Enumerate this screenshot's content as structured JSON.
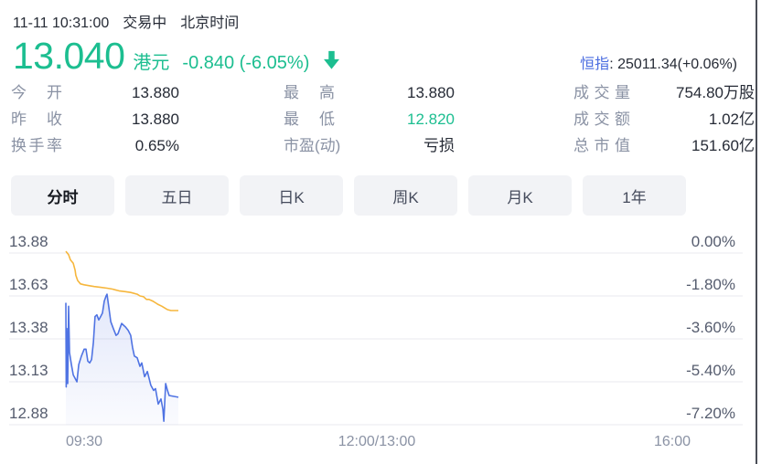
{
  "header": {
    "datetime": "11-11 10:31:00",
    "market_status": "交易中",
    "timezone": "北京时间",
    "price": "13.040",
    "currency": "港元",
    "change": "-0.840 (-6.05%)",
    "direction_icon": "down-arrow",
    "index_label": "恒指",
    "index_value": ": 25011.34(+0.06%)"
  },
  "stats": {
    "columns": [
      {
        "rows": [
          {
            "label": "今开",
            "value": "13.880"
          },
          {
            "label": "昨收",
            "value": "13.880"
          },
          {
            "label": "换手率",
            "value": "0.65%"
          }
        ]
      },
      {
        "rows": [
          {
            "label": "最高",
            "value": "13.880"
          },
          {
            "label": "最低",
            "value": "12.820"
          },
          {
            "label": "市盈(动)",
            "value": "亏损"
          }
        ]
      },
      {
        "rows": [
          {
            "label": "成交量",
            "value": "754.80万股"
          },
          {
            "label": "成交额",
            "value": "1.02亿"
          },
          {
            "label": "总市值",
            "value": "151.60亿"
          }
        ]
      }
    ]
  },
  "tabs": [
    {
      "label": "分时",
      "active": true
    },
    {
      "label": "五日",
      "active": false
    },
    {
      "label": "日K",
      "active": false
    },
    {
      "label": "周K",
      "active": false
    },
    {
      "label": "月K",
      "active": false
    },
    {
      "label": "1年",
      "active": false
    }
  ],
  "colors": {
    "accent_green": "#1CBE90",
    "index_blue": "#4A6CE0",
    "price_line_blue": "#4F73E3",
    "avg_line_orange": "#F6B63C",
    "text_dark": "#262B36",
    "label_gray": "#8A92A4",
    "axis_gray": "#555C6E",
    "grid_line": "#E9EAEF",
    "tab_bg": "#F2F3F6",
    "edge_line": "#4A4E57"
  },
  "chart_data": {
    "type": "line",
    "title": "分时图 (intraday price vs average)",
    "prev_close": 13.88,
    "x_ticks": [
      "09:30",
      "12:00/13:00",
      "16:00"
    ],
    "y_left_ticks": [
      "13.88",
      "13.63",
      "13.38",
      "13.13",
      "12.88"
    ],
    "y_right_ticks": [
      "0.00%",
      "-1.80%",
      "-3.60%",
      "-5.40%",
      "-7.20%"
    ],
    "y_axis_prices": [
      13.88,
      13.63,
      13.38,
      13.13,
      12.88
    ],
    "ylim": [
      12.82,
      13.88
    ],
    "x_range_minutes": [
      0,
      330
    ],
    "grid": true,
    "legend": "none",
    "series": [
      {
        "name": "price",
        "color": "#4F73E3",
        "points": [
          [
            0,
            13.59
          ],
          [
            0.2,
            13.1
          ],
          [
            0.5,
            13.44
          ],
          [
            1,
            13.12
          ],
          [
            1.5,
            13.57
          ],
          [
            2,
            13.3
          ],
          [
            3,
            13.23
          ],
          [
            4,
            13.17
          ],
          [
            5,
            13.15
          ],
          [
            6,
            13.13
          ],
          [
            7,
            13.23
          ],
          [
            8.4,
            13.28
          ],
          [
            9.9,
            13.32
          ],
          [
            10.9,
            13.32
          ],
          [
            11.9,
            13.25
          ],
          [
            12.9,
            13.24
          ],
          [
            13.9,
            13.26
          ],
          [
            14.9,
            13.36
          ],
          [
            15.8,
            13.51
          ],
          [
            16.8,
            13.52
          ],
          [
            17.8,
            13.49
          ],
          [
            18.8,
            13.51
          ],
          [
            19.8,
            13.53
          ],
          [
            20.8,
            13.6
          ],
          [
            21.8,
            13.63
          ],
          [
            22.3,
            13.64
          ],
          [
            23.3,
            13.56
          ],
          [
            24.3,
            13.48
          ],
          [
            25.7,
            13.44
          ],
          [
            27.2,
            13.4
          ],
          [
            28.2,
            13.41
          ],
          [
            29.2,
            13.44
          ],
          [
            30.2,
            13.47
          ],
          [
            31.2,
            13.46
          ],
          [
            32.2,
            13.45
          ],
          [
            33.7,
            13.43
          ],
          [
            35.1,
            13.4
          ],
          [
            36.1,
            13.33
          ],
          [
            37.1,
            13.28
          ],
          [
            38.6,
            13.27
          ],
          [
            40.1,
            13.22
          ],
          [
            41.1,
            13.24
          ],
          [
            42.6,
            13.16
          ],
          [
            44.1,
            13.19
          ],
          [
            46,
            13.11
          ],
          [
            47.5,
            13.08
          ],
          [
            48.5,
            13.09
          ],
          [
            50,
            13.0
          ],
          [
            51.5,
            13.03
          ],
          [
            52.5,
            12.97
          ],
          [
            53,
            12.9
          ],
          [
            54,
            13.12
          ],
          [
            55,
            13.08
          ],
          [
            55.9,
            13.05
          ],
          [
            60.9,
            13.04
          ]
        ]
      },
      {
        "name": "average",
        "color": "#F6B63C",
        "points": [
          [
            0,
            13.89
          ],
          [
            1.5,
            13.87
          ],
          [
            2.5,
            13.84
          ],
          [
            4,
            13.82
          ],
          [
            5,
            13.78
          ],
          [
            5.4,
            13.75
          ],
          [
            6.4,
            13.72
          ],
          [
            7.9,
            13.7
          ],
          [
            9.9,
            13.695
          ],
          [
            12.4,
            13.69
          ],
          [
            15.3,
            13.685
          ],
          [
            18.8,
            13.68
          ],
          [
            22.3,
            13.675
          ],
          [
            25.2,
            13.67
          ],
          [
            28.7,
            13.66
          ],
          [
            32.2,
            13.655
          ],
          [
            35.1,
            13.65
          ],
          [
            38.6,
            13.64
          ],
          [
            40.1,
            13.63
          ],
          [
            42.1,
            13.625
          ],
          [
            43.6,
            13.61
          ],
          [
            45,
            13.61
          ],
          [
            47,
            13.6
          ],
          [
            48.5,
            13.59
          ],
          [
            50,
            13.58
          ],
          [
            52,
            13.57
          ],
          [
            53.5,
            13.56
          ],
          [
            55,
            13.55
          ],
          [
            56.9,
            13.545
          ],
          [
            60.9,
            13.545
          ]
        ]
      }
    ]
  }
}
